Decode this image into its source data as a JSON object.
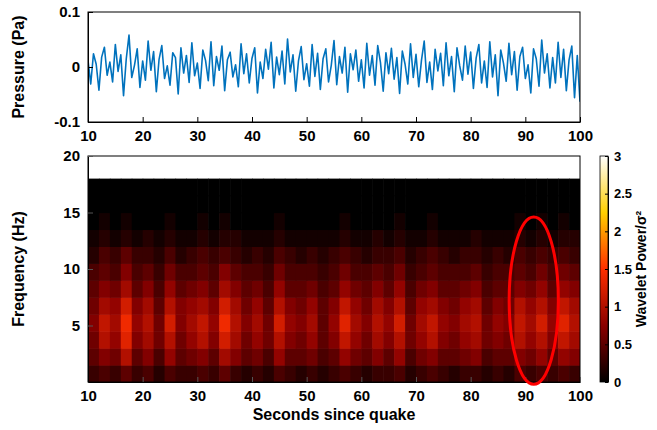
{
  "chart_data": [
    {
      "type": "line",
      "ylabel": "Pressure (Pa)",
      "x": [
        10,
        10.5,
        11,
        11.5,
        12,
        12.5,
        13,
        13.5,
        14,
        14.5,
        15,
        15.5,
        16,
        16.5,
        17,
        17.5,
        18,
        18.5,
        19,
        19.5,
        20,
        20.5,
        21,
        21.5,
        22,
        22.5,
        23,
        23.5,
        24,
        24.5,
        25,
        25.5,
        26,
        26.5,
        27,
        27.5,
        28,
        28.5,
        29,
        29.5,
        30,
        30.5,
        31,
        31.5,
        32,
        32.5,
        33,
        33.5,
        34,
        34.5,
        35,
        35.5,
        36,
        36.5,
        37,
        37.5,
        38,
        38.5,
        39,
        39.5,
        40,
        40.5,
        41,
        41.5,
        42,
        42.5,
        43,
        43.5,
        44,
        44.5,
        45,
        45.5,
        46,
        46.5,
        47,
        47.5,
        48,
        48.5,
        49,
        49.5,
        50,
        50.5,
        51,
        51.5,
        52,
        52.5,
        53,
        53.5,
        54,
        54.5,
        55,
        55.5,
        56,
        56.5,
        57,
        57.5,
        58,
        58.5,
        59,
        59.5,
        60,
        60.5,
        61,
        61.5,
        62,
        62.5,
        63,
        63.5,
        64,
        64.5,
        65,
        65.5,
        66,
        66.5,
        67,
        67.5,
        68,
        68.5,
        69,
        69.5,
        70,
        70.5,
        71,
        71.5,
        72,
        72.5,
        73,
        73.5,
        74,
        74.5,
        75,
        75.5,
        76,
        76.5,
        77,
        77.5,
        78,
        78.5,
        79,
        79.5,
        80,
        80.5,
        81,
        81.5,
        82,
        82.5,
        83,
        83.5,
        84,
        84.5,
        85,
        85.5,
        86,
        86.5,
        87,
        87.5,
        88,
        88.5,
        89,
        89.5,
        90,
        90.5,
        91,
        91.5,
        92,
        92.5,
        93,
        93.5,
        94,
        94.5,
        95,
        95.5,
        96,
        96.5,
        97,
        97.5,
        98,
        98.5,
        99,
        99.5,
        100
      ],
      "series": [
        {
          "color": "#0072bd",
          "values": [
            0.012,
            -0.031,
            0.024,
            0.005,
            -0.042,
            0.018,
            0.036,
            -0.015,
            0.009,
            -0.027,
            0.041,
            -0.008,
            0.022,
            -0.052,
            0.015,
            0.058,
            -0.019,
            0.003,
            0.033,
            -0.037,
            0.011,
            -0.024,
            0.047,
            -0.006,
            0.028,
            -0.045,
            0.014,
            0.039,
            -0.021,
            0.002,
            -0.033,
            0.026,
            0.017,
            -0.049,
            0.035,
            -0.011,
            0.021,
            -0.028,
            0.044,
            -0.016,
            0.007,
            -0.039,
            0.031,
            0.012,
            -0.025,
            0.046,
            -0.034,
            0.019,
            -0.006,
            0.038,
            -0.043,
            0.013,
            0.027,
            -0.018,
            0.004,
            -0.036,
            0.042,
            -0.012,
            0.024,
            -0.029,
            0.016,
            0.035,
            -0.047,
            0.009,
            -0.021,
            0.032,
            -0.004,
            0.045,
            -0.038,
            0.018,
            -0.014,
            0.029,
            -0.031,
            0.051,
            -0.009,
            0.022,
            -0.044,
            0.011,
            0.037,
            -0.023,
            0.006,
            -0.035,
            0.041,
            -0.017,
            0.025,
            -0.041,
            0.015,
            0.033,
            -0.027,
            0.003,
            0.048,
            -0.032,
            0.019,
            -0.011,
            0.036,
            -0.046,
            0.024,
            -0.005,
            0.031,
            -0.026,
            0.013,
            -0.038,
            0.043,
            -0.015,
            0.021,
            -0.033,
            0.039,
            0.008,
            -0.044,
            0.026,
            -0.012,
            0.034,
            -0.022,
            0.017,
            -0.048,
            0.029,
            0.005,
            -0.031,
            0.042,
            -0.019,
            0.023,
            -0.036,
            0.012,
            0.047,
            -0.028,
            0.009,
            -0.041,
            0.032,
            -0.007,
            0.025,
            -0.034,
            0.044,
            -0.016,
            0.019,
            -0.045,
            0.035,
            0.002,
            -0.024,
            0.038,
            -0.013,
            0.027,
            -0.039,
            0.016,
            0.041,
            -0.029,
            0.011,
            -0.037,
            0.046,
            -0.018,
            0.022,
            -0.052,
            0.031,
            0.007,
            -0.026,
            0.043,
            -0.014,
            0.028,
            -0.042,
            0.019,
            0.036,
            -0.021,
            0.004,
            -0.047,
            0.033,
            0.015,
            -0.035,
            0.049,
            -0.011,
            0.024,
            -0.038,
            0.017,
            -0.029,
            0.045,
            -0.019,
            0.032,
            -0.043,
            0.013,
            0.038,
            -0.056,
            0.021,
            -0.063
          ]
        }
      ],
      "xlim": [
        10,
        100
      ],
      "xticks": [
        10,
        20,
        30,
        40,
        50,
        60,
        70,
        80,
        90,
        100
      ],
      "ylim": [
        -0.1,
        0.1
      ],
      "yticks": [
        -0.1,
        0,
        0.1
      ]
    },
    {
      "type": "heatmap",
      "xlabel": "Seconds since quake",
      "ylabel": "Frequency (Hz)",
      "x_bins": [
        10,
        12,
        14,
        16,
        18,
        20,
        22,
        24,
        26,
        28,
        30,
        32,
        34,
        36,
        38,
        40,
        42,
        44,
        46,
        48,
        50,
        52,
        54,
        56,
        58,
        60,
        62,
        64,
        66,
        68,
        70,
        72,
        74,
        76,
        78,
        80,
        82,
        84,
        86,
        88,
        90,
        92,
        94,
        96,
        98,
        100
      ],
      "y_bins": [
        0,
        1.5,
        3,
        4.5,
        6,
        7.5,
        9,
        10.5,
        12,
        13.5,
        15,
        16.5,
        18
      ],
      "cells": [
        [
          0.3,
          0.4,
          0.3,
          0.5,
          0.3,
          0.4,
          0.2,
          0.4,
          0.3,
          0.3,
          0.4,
          0.3,
          0.5,
          0.3,
          0.2,
          0.3,
          0.2,
          0.4,
          0.3,
          0.2,
          0.3,
          0.2,
          0.3,
          0.4,
          0.3,
          0.2,
          0.3,
          0.3,
          0.4,
          0.2,
          0.3,
          0.4,
          0.3,
          0.2,
          0.3,
          0.3,
          0.2,
          0.3,
          0.2,
          0.4,
          0.3,
          0.4,
          0.3,
          0.4,
          0.3
        ],
        [
          0.5,
          0.7,
          0.6,
          1.0,
          0.5,
          0.7,
          0.4,
          0.8,
          0.5,
          0.6,
          0.7,
          0.5,
          0.9,
          0.7,
          0.5,
          0.6,
          0.4,
          0.8,
          0.5,
          0.5,
          0.6,
          0.4,
          0.5,
          0.8,
          0.6,
          0.5,
          0.7,
          0.5,
          0.8,
          0.4,
          0.6,
          0.7,
          0.5,
          0.5,
          0.6,
          0.7,
          0.4,
          0.5,
          0.5,
          0.7,
          0.6,
          0.8,
          0.5,
          0.8,
          0.7
        ],
        [
          0.6,
          1.0,
          0.8,
          1.3,
          0.7,
          0.9,
          0.6,
          1.0,
          0.6,
          0.8,
          1.0,
          0.7,
          1.2,
          0.9,
          0.6,
          0.8,
          0.6,
          1.0,
          0.7,
          0.6,
          0.8,
          0.5,
          0.7,
          1.1,
          0.8,
          0.6,
          0.9,
          0.7,
          1.0,
          0.6,
          0.8,
          1.0,
          0.7,
          0.6,
          0.8,
          0.9,
          0.6,
          0.7,
          0.6,
          1.0,
          0.8,
          1.0,
          0.7,
          1.1,
          0.9
        ],
        [
          0.7,
          1.1,
          0.9,
          1.4,
          0.8,
          1.0,
          0.6,
          1.2,
          0.7,
          0.9,
          1.1,
          0.8,
          1.4,
          1.0,
          0.7,
          0.9,
          0.6,
          1.2,
          0.8,
          0.7,
          0.9,
          0.5,
          0.8,
          1.3,
          0.9,
          0.7,
          1.0,
          0.8,
          1.2,
          0.6,
          0.9,
          1.1,
          0.8,
          0.7,
          0.9,
          1.0,
          0.6,
          0.8,
          0.7,
          1.1,
          0.9,
          1.2,
          0.8,
          1.3,
          1.0
        ],
        [
          0.6,
          0.9,
          0.8,
          1.2,
          0.7,
          0.9,
          0.5,
          1.0,
          0.7,
          0.8,
          0.9,
          0.7,
          1.2,
          0.9,
          0.6,
          0.8,
          0.5,
          1.0,
          0.7,
          0.6,
          0.8,
          0.5,
          0.7,
          1.1,
          0.8,
          0.6,
          0.9,
          0.7,
          1.0,
          0.5,
          0.8,
          0.9,
          0.7,
          0.6,
          0.8,
          0.9,
          0.5,
          0.7,
          0.6,
          1.0,
          0.8,
          1.0,
          0.7,
          1.1,
          0.9
        ],
        [
          0.5,
          0.7,
          0.6,
          0.9,
          0.5,
          0.7,
          0.4,
          0.8,
          0.5,
          0.6,
          0.7,
          0.5,
          0.9,
          0.7,
          0.5,
          0.6,
          0.4,
          0.8,
          0.5,
          0.5,
          0.6,
          0.4,
          0.5,
          0.8,
          0.6,
          0.5,
          0.7,
          0.5,
          0.8,
          0.4,
          0.6,
          0.7,
          0.5,
          0.5,
          0.6,
          0.7,
          0.4,
          0.5,
          0.5,
          0.7,
          0.6,
          0.8,
          0.5,
          0.8,
          0.7
        ],
        [
          0.4,
          0.5,
          0.4,
          0.7,
          0.4,
          0.5,
          0.3,
          0.6,
          0.4,
          0.4,
          0.5,
          0.4,
          0.7,
          0.5,
          0.4,
          0.4,
          0.3,
          0.6,
          0.4,
          0.4,
          0.4,
          0.3,
          0.4,
          0.6,
          0.4,
          0.4,
          0.5,
          0.4,
          0.6,
          0.3,
          0.4,
          0.5,
          0.4,
          0.4,
          0.4,
          0.5,
          0.3,
          0.4,
          0.4,
          0.5,
          0.4,
          0.6,
          0.4,
          0.6,
          0.5
        ],
        [
          0.2,
          0.4,
          0.3,
          0.5,
          0.3,
          0.3,
          0.2,
          0.4,
          0.2,
          0.3,
          0.4,
          0.3,
          0.4,
          0.3,
          0.2,
          0.3,
          0.2,
          0.4,
          0.3,
          0.2,
          0.3,
          0.2,
          0.3,
          0.4,
          0.3,
          0.2,
          0.3,
          0.3,
          0.4,
          0.2,
          0.3,
          0.4,
          0.3,
          0.2,
          0.3,
          0.3,
          0.2,
          0.3,
          0.2,
          0.4,
          0.3,
          0.4,
          0.3,
          0.4,
          0.3
        ],
        [
          0.1,
          0.2,
          0.1,
          0.2,
          0.1,
          0.2,
          0.1,
          0.2,
          0.1,
          0.1,
          0.2,
          0.1,
          0.2,
          0.2,
          0.1,
          0.1,
          0.1,
          0.2,
          0.1,
          0.1,
          0.1,
          0.1,
          0.1,
          0.2,
          0.1,
          0.1,
          0.2,
          0.1,
          0.2,
          0.1,
          0.1,
          0.2,
          0.1,
          0.1,
          0.1,
          0.2,
          0.1,
          0.1,
          0.1,
          0.2,
          0.1,
          0.2,
          0.1,
          0.2,
          0.2
        ],
        [
          0,
          0.1,
          0,
          0.1,
          0,
          0,
          0,
          0.1,
          0,
          0,
          0.1,
          0,
          0.1,
          0,
          0,
          0,
          0,
          0.1,
          0,
          0,
          0,
          0,
          0,
          0.1,
          0,
          0,
          0,
          0,
          0.1,
          0,
          0,
          0.1,
          0,
          0,
          0,
          0,
          0,
          0,
          0,
          0.1,
          0,
          0.1,
          0,
          0.1,
          0
        ],
        [
          0,
          0,
          0,
          0,
          0,
          0,
          0,
          0,
          0,
          0,
          0,
          0,
          0,
          0,
          0,
          0,
          0,
          0,
          0,
          0,
          0,
          0,
          0,
          0,
          0,
          0,
          0,
          0,
          0,
          0,
          0,
          0,
          0,
          0,
          0,
          0,
          0,
          0,
          0,
          0,
          0,
          0,
          0,
          0,
          0
        ],
        [
          0,
          0,
          0,
          0,
          0,
          0,
          0,
          0,
          0,
          0,
          0,
          0,
          0,
          0,
          0,
          0,
          0,
          0,
          0,
          0,
          0,
          0,
          0,
          0,
          0,
          0,
          0,
          0,
          0,
          0,
          0,
          0,
          0,
          0,
          0,
          0,
          0,
          0,
          0,
          0,
          0,
          0,
          0,
          0,
          0
        ]
      ],
      "xlim": [
        10,
        100
      ],
      "xticks": [
        10,
        20,
        30,
        40,
        50,
        60,
        70,
        80,
        90,
        100
      ],
      "ylim": [
        0,
        20
      ],
      "yticks": [
        5,
        10,
        15,
        20
      ],
      "colorbar": {
        "label": "Wavelet Power/σ²",
        "range": [
          0,
          3
        ],
        "ticks": [
          0,
          0.5,
          1,
          1.5,
          2,
          2.5,
          3
        ]
      }
    }
  ]
}
